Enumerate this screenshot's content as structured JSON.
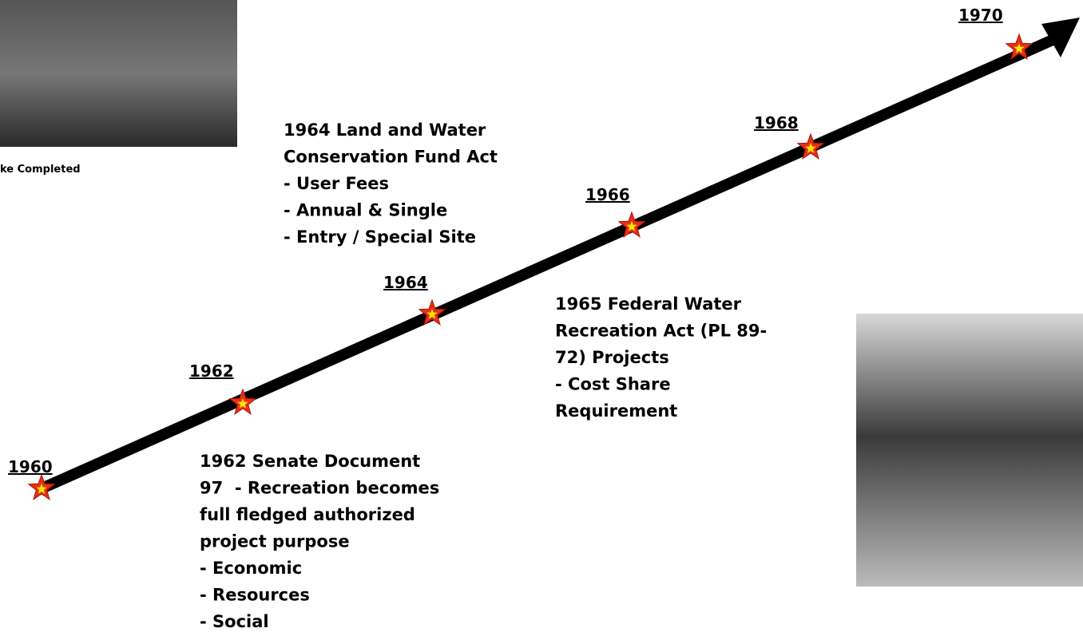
{
  "photo_caption": "ke Completed",
  "timeline": {
    "years": [
      "1960",
      "1962",
      "1964",
      "1966",
      "1968",
      "1970"
    ]
  },
  "notes": [
    {
      "lines": [
        "1964 Land and Water",
        "Conservation Fund Act",
        "- User Fees",
        "- Annual & Single",
        "- Entry / Special Site"
      ]
    },
    {
      "lines": [
        "1965 Federal Water",
        "Recreation Act (PL 89-",
        "72) Projects",
        "- Cost Share",
        "Requirement"
      ]
    },
    {
      "lines": [
        "1962 Senate Document",
        "97  - Recreation becomes",
        "full fledged authorized",
        "project purpose",
        "- Economic",
        "- Resources",
        "- Social"
      ]
    }
  ]
}
